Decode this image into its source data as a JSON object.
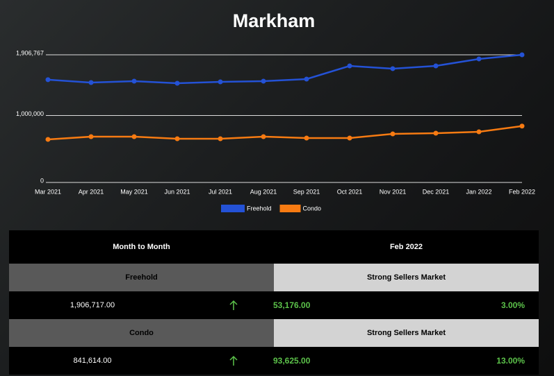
{
  "chart_data": {
    "type": "line",
    "title": "Markham",
    "categories": [
      "Mar 2021",
      "Apr 2021",
      "May 2021",
      "Jun 2021",
      "Jul 2021",
      "Aug 2021",
      "Sep 2021",
      "Oct 2021",
      "Nov 2021",
      "Dec 2021",
      "Jan 2022",
      "Feb 2022"
    ],
    "series": [
      {
        "name": "Freehold",
        "color": "#2452d6",
        "values": [
          1535000,
          1492000,
          1513000,
          1482000,
          1503000,
          1513000,
          1544000,
          1741000,
          1700000,
          1741000,
          1845000,
          1906717
        ]
      },
      {
        "name": "Condo",
        "color": "#f77b12",
        "values": [
          643000,
          684000,
          684000,
          653000,
          653000,
          684000,
          663000,
          663000,
          725000,
          736000,
          756000,
          841614
        ]
      }
    ],
    "ylim": [
      0,
      1906767
    ],
    "yticks": [
      0,
      {
        "value": 1000000,
        "label": "1,000,000"
      },
      {
        "value": 1906767,
        "label": "1,906,767"
      }
    ],
    "grid": true,
    "legend": "bottom"
  },
  "table": {
    "header": [
      "Month to Month",
      "Feb 2022"
    ],
    "sections": [
      {
        "name": "Freehold",
        "status": "Strong Sellers Market",
        "value": "1,906,717.00",
        "change": "53,176.00",
        "percent": "3.00%"
      },
      {
        "name": "Condo",
        "status": "Strong Sellers Market",
        "value": "841,614.00",
        "change": "93,625.00",
        "percent": "13.00%"
      }
    ]
  }
}
